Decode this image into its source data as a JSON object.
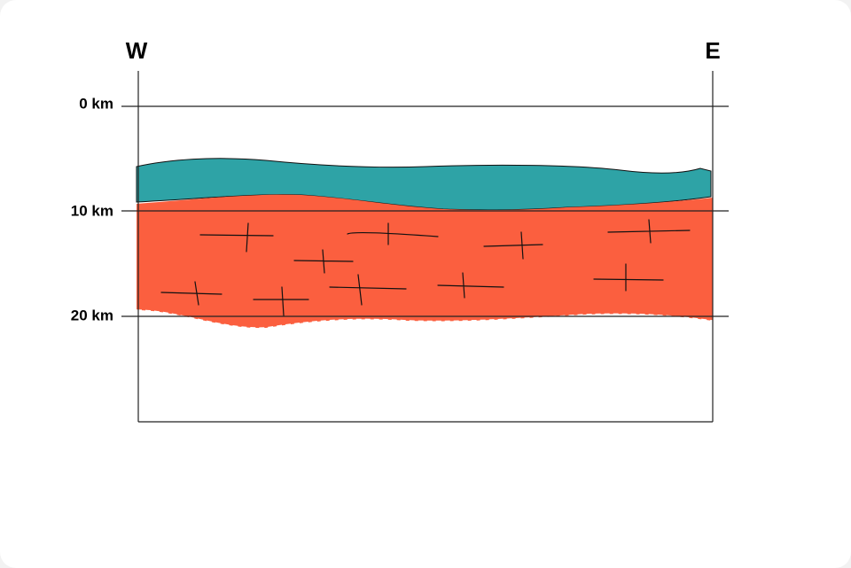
{
  "compass": {
    "west": "W",
    "east": "E"
  },
  "depth_labels": [
    "0 km",
    "10 km",
    "20 km"
  ]
}
